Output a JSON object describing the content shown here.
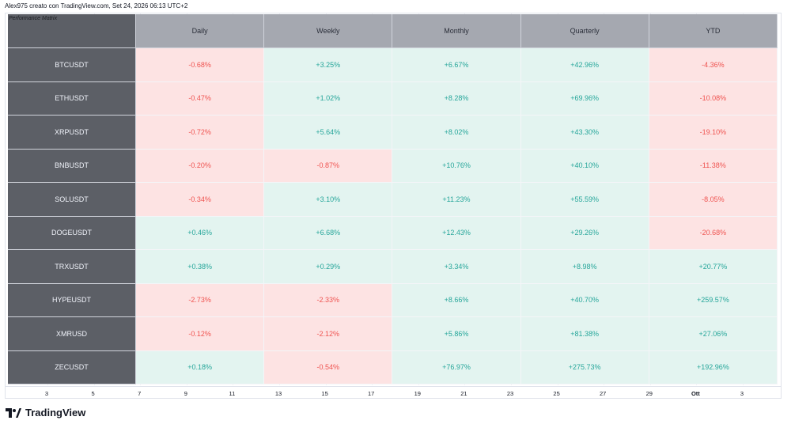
{
  "caption": "Alex975 creato con TradingView.com, Set 24, 2026 06:13 UTC+2",
  "table": {
    "corner_label": "Performance Matrix",
    "columns": [
      "Daily",
      "Weekly",
      "Monthly",
      "Quarterly",
      "YTD"
    ],
    "rows": [
      {
        "symbol": "BTCUSDT",
        "values": [
          "-0.68%",
          "+3.25%",
          "+6.67%",
          "+42.96%",
          "-4.36%"
        ]
      },
      {
        "symbol": "ETHUSDT",
        "values": [
          "-0.47%",
          "+1.02%",
          "+8.28%",
          "+69.96%",
          "-10.08%"
        ]
      },
      {
        "symbol": "XRPUSDT",
        "values": [
          "-0.72%",
          "+5.64%",
          "+8.02%",
          "+43.30%",
          "-19.10%"
        ]
      },
      {
        "symbol": "BNBUSDT",
        "values": [
          "-0.20%",
          "-0.87%",
          "+10.76%",
          "+40.10%",
          "-11.38%"
        ]
      },
      {
        "symbol": "SOLUSDT",
        "values": [
          "-0.34%",
          "+3.10%",
          "+11.23%",
          "+55.59%",
          "-8.05%"
        ]
      },
      {
        "symbol": "DOGEUSDT",
        "values": [
          "+0.46%",
          "+6.68%",
          "+12.43%",
          "+29.26%",
          "-20.68%"
        ]
      },
      {
        "symbol": "TRXUSDT",
        "values": [
          "+0.38%",
          "+0.29%",
          "+3.34%",
          "+8.98%",
          "+20.77%"
        ]
      },
      {
        "symbol": "HYPEUSDT",
        "values": [
          "-2.73%",
          "-2.33%",
          "+8.66%",
          "+40.70%",
          "+259.57%"
        ]
      },
      {
        "symbol": "XMRUSD",
        "values": [
          "-0.12%",
          "-2.12%",
          "+5.86%",
          "+81.38%",
          "+27.06%"
        ]
      },
      {
        "symbol": "ZECUSDT",
        "values": [
          "+0.18%",
          "-0.54%",
          "+76.97%",
          "+275.73%",
          "+192.96%"
        ]
      }
    ]
  },
  "time_axis": [
    "3",
    "5",
    "7",
    "9",
    "11",
    "13",
    "15",
    "17",
    "19",
    "21",
    "23",
    "25",
    "27",
    "29",
    "Ott",
    "3"
  ],
  "time_axis_bold": "Ott",
  "brand": "TradingView",
  "colors": {
    "positive_bg": "#e3f4f0",
    "positive_text": "#26a69a",
    "negative_bg": "#fde3e3",
    "negative_text": "#ef5350",
    "header_bg": "#a5a8b0",
    "row_header_bg": "#5c5f66"
  }
}
